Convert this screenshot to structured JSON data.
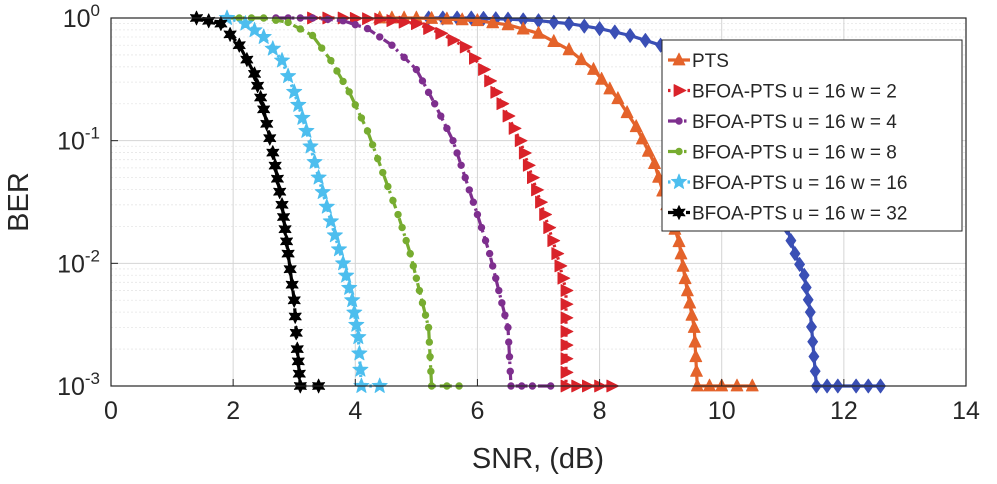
{
  "chart_data": {
    "type": "line",
    "title": "",
    "xlabel": "SNR, (dB)",
    "ylabel": "BER",
    "xlim": [
      0,
      14
    ],
    "ylim": [
      0.001,
      1
    ],
    "yscale": "log",
    "grid": true,
    "legend_position": "top-right",
    "x_ticks": [
      "0",
      "2",
      "4",
      "6",
      "8",
      "10",
      "12",
      "14"
    ],
    "y_ticks": [
      {
        "base": "10",
        "exp": "0"
      },
      {
        "base": "10",
        "exp": "-1"
      },
      {
        "base": "10",
        "exp": "-2"
      },
      {
        "base": "10",
        "exp": "-3"
      }
    ],
    "series": [
      {
        "name": "",
        "color": "#3a4fb5",
        "marker": "diamond",
        "dash": "solid",
        "in_legend": false,
        "points": [
          [
            5.2,
            1
          ],
          [
            5.9,
            1
          ],
          [
            6.5,
            0.98
          ],
          [
            7.0,
            0.95
          ],
          [
            7.5,
            0.9
          ],
          [
            8.0,
            0.82
          ],
          [
            8.5,
            0.72
          ],
          [
            9.0,
            0.6
          ],
          [
            9.4,
            0.48
          ],
          [
            9.8,
            0.35
          ],
          [
            10.2,
            0.22
          ],
          [
            10.5,
            0.12
          ],
          [
            10.8,
            0.055
          ],
          [
            11.0,
            0.025
          ],
          [
            11.2,
            0.012
          ],
          [
            11.35,
            0.008
          ],
          [
            11.45,
            0.004
          ],
          [
            11.55,
            0.001
          ],
          [
            11.9,
            0.001
          ],
          [
            12.2,
            0.001
          ],
          [
            12.6,
            0.001
          ]
        ]
      },
      {
        "name": "PTS",
        "color": "#e4632b",
        "marker": "triangle-up",
        "dash": "solid",
        "in_legend": true,
        "points": [
          [
            4.4,
            1
          ],
          [
            5.0,
            1
          ],
          [
            5.5,
            0.98
          ],
          [
            6.0,
            0.95
          ],
          [
            6.5,
            0.88
          ],
          [
            7.0,
            0.75
          ],
          [
            7.5,
            0.55
          ],
          [
            7.9,
            0.38
          ],
          [
            8.3,
            0.22
          ],
          [
            8.6,
            0.13
          ],
          [
            8.9,
            0.065
          ],
          [
            9.1,
            0.03
          ],
          [
            9.3,
            0.015
          ],
          [
            9.4,
            0.0075
          ],
          [
            9.55,
            0.003
          ],
          [
            9.6,
            0.001
          ],
          [
            10.0,
            0.001
          ],
          [
            10.5,
            0.001
          ]
        ]
      },
      {
        "name": "BFOA-PTS u = 16 w = 2",
        "color": "#d9232a",
        "marker": "triangle-right",
        "dash": "dot",
        "in_legend": true,
        "points": [
          [
            3.3,
            1
          ],
          [
            3.8,
            1
          ],
          [
            4.4,
            0.98
          ],
          [
            5.0,
            0.9
          ],
          [
            5.4,
            0.75
          ],
          [
            5.8,
            0.58
          ],
          [
            6.1,
            0.38
          ],
          [
            6.4,
            0.2
          ],
          [
            6.7,
            0.1
          ],
          [
            6.9,
            0.05
          ],
          [
            7.1,
            0.025
          ],
          [
            7.3,
            0.012
          ],
          [
            7.45,
            0.006
          ],
          [
            7.45,
            0.001
          ],
          [
            7.8,
            0.001
          ],
          [
            8.2,
            0.001
          ]
        ]
      },
      {
        "name": "BFOA-PTS u = 16 w = 4",
        "color": "#7e2f8e",
        "marker": "circle",
        "dash": "dashdot",
        "in_legend": true,
        "points": [
          [
            2.7,
            1
          ],
          [
            3.3,
            1
          ],
          [
            3.8,
            0.95
          ],
          [
            4.2,
            0.82
          ],
          [
            4.6,
            0.6
          ],
          [
            5.0,
            0.38
          ],
          [
            5.3,
            0.2
          ],
          [
            5.6,
            0.1
          ],
          [
            5.8,
            0.05
          ],
          [
            6.0,
            0.025
          ],
          [
            6.2,
            0.012
          ],
          [
            6.35,
            0.006
          ],
          [
            6.5,
            0.003
          ],
          [
            6.55,
            0.001
          ],
          [
            6.9,
            0.001
          ],
          [
            7.2,
            0.001
          ]
        ]
      },
      {
        "name": "BFOA-PTS u = 16 w = 8",
        "color": "#77ac30",
        "marker": "circle",
        "dash": "dashdot",
        "in_legend": true,
        "points": [
          [
            1.9,
            1
          ],
          [
            2.5,
            1
          ],
          [
            2.9,
            0.92
          ],
          [
            3.3,
            0.72
          ],
          [
            3.6,
            0.45
          ],
          [
            3.9,
            0.25
          ],
          [
            4.2,
            0.12
          ],
          [
            4.45,
            0.055
          ],
          [
            4.7,
            0.025
          ],
          [
            4.9,
            0.012
          ],
          [
            5.05,
            0.006
          ],
          [
            5.2,
            0.003
          ],
          [
            5.25,
            0.001
          ],
          [
            5.5,
            0.001
          ],
          [
            5.7,
            0.001
          ]
        ]
      },
      {
        "name": "BFOA-PTS u = 16 w = 16",
        "color": "#4dbeee",
        "marker": "star",
        "dash": "dot",
        "in_legend": true,
        "points": [
          [
            1.9,
            1
          ],
          [
            2.2,
            0.9
          ],
          [
            2.5,
            0.7
          ],
          [
            2.8,
            0.45
          ],
          [
            3.0,
            0.25
          ],
          [
            3.2,
            0.12
          ],
          [
            3.4,
            0.05
          ],
          [
            3.6,
            0.022
          ],
          [
            3.8,
            0.01
          ],
          [
            3.95,
            0.005
          ],
          [
            4.05,
            0.0025
          ],
          [
            4.1,
            0.001
          ],
          [
            4.4,
            0.001
          ]
        ]
      },
      {
        "name": "BFOA-PTS u = 16 w = 32",
        "color": "#000000",
        "marker": "hexagram",
        "dash": "dash",
        "in_legend": true,
        "points": [
          [
            1.4,
            1
          ],
          [
            1.8,
            0.9
          ],
          [
            2.1,
            0.6
          ],
          [
            2.35,
            0.35
          ],
          [
            2.5,
            0.18
          ],
          [
            2.65,
            0.08
          ],
          [
            2.8,
            0.03
          ],
          [
            2.9,
            0.012
          ],
          [
            3.0,
            0.005
          ],
          [
            3.05,
            0.002
          ],
          [
            3.1,
            0.001
          ],
          [
            3.4,
            0.001
          ]
        ]
      }
    ]
  }
}
